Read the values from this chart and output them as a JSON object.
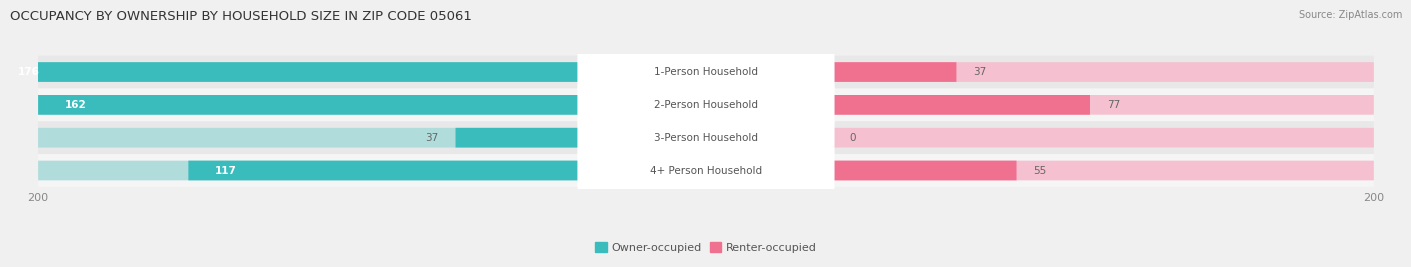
{
  "title": "OCCUPANCY BY OWNERSHIP BY HOUSEHOLD SIZE IN ZIP CODE 05061",
  "source": "Source: ZipAtlas.com",
  "categories": [
    "1-Person Household",
    "2-Person Household",
    "3-Person Household",
    "4+ Person Household"
  ],
  "owner_values": [
    176,
    162,
    37,
    117
  ],
  "renter_values": [
    37,
    77,
    0,
    55
  ],
  "owner_color": "#3BBCBC",
  "renter_color": "#F07090",
  "owner_color_light": "#B0DCDC",
  "renter_color_light": "#F5C0D0",
  "axis_max": 200,
  "bg_color": "#f0f0f0",
  "row_color_even": "#e8e8e8",
  "row_color_odd": "#f5f5f5",
  "label_box_color": "#ffffff",
  "title_fontsize": 9.5,
  "source_fontsize": 7,
  "tick_fontsize": 8,
  "legend_fontsize": 8,
  "value_fontsize": 7.5,
  "category_fontsize": 7.5
}
